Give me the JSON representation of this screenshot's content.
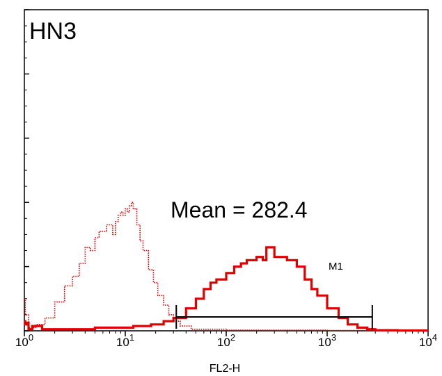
{
  "chart_data": {
    "type": "line",
    "title": "HN3",
    "annotation": "Mean = 282.4",
    "marker": {
      "label": "M1",
      "x_start": 32,
      "x_end": 2800
    },
    "xlabel": "FL2-H",
    "xscale": "log",
    "xlim": [
      1,
      10000
    ],
    "ylim": [
      0,
      100
    ],
    "x_ticks": [
      {
        "value": 1,
        "base": "10",
        "exp": "0"
      },
      {
        "value": 10,
        "base": "10",
        "exp": "1"
      },
      {
        "value": 100,
        "base": "10",
        "exp": "2"
      },
      {
        "value": 1000,
        "base": "10",
        "exp": "3"
      },
      {
        "value": 10000,
        "base": "10",
        "exp": "4"
      }
    ],
    "y_ticks": [
      0,
      20,
      40,
      60,
      80,
      100
    ],
    "grid": false,
    "series": [
      {
        "style": "dotted",
        "color": "#e00000",
        "x": [
          1,
          1.02,
          1.1,
          1.3,
          1.6,
          2,
          2.5,
          3,
          3.5,
          4,
          4.5,
          5,
          5.5,
          6,
          6.5,
          7,
          7.5,
          8,
          8.5,
          9,
          9.5,
          10,
          10.5,
          11,
          11.5,
          12,
          13,
          14,
          15,
          17,
          19,
          21,
          24,
          27,
          30,
          35,
          45,
          100,
          1000,
          10000
        ],
        "y": [
          10,
          5,
          1,
          2,
          4,
          9,
          14,
          17,
          21,
          26,
          25,
          29,
          31,
          31,
          33,
          33,
          30,
          34,
          36,
          37,
          36,
          38,
          37,
          39,
          40,
          38,
          33,
          28,
          25,
          19,
          15,
          11,
          8,
          5,
          3,
          1.5,
          0.5,
          0.2,
          0.1,
          0
        ]
      },
      {
        "style": "solid",
        "color": "#e00000",
        "x": [
          1,
          1.02,
          1.05,
          1.1,
          1.2,
          1.5,
          2,
          3,
          5,
          8,
          12,
          18,
          24,
          30,
          34,
          40,
          50,
          60,
          70,
          80,
          100,
          120,
          140,
          160,
          200,
          230,
          250,
          300,
          350,
          400,
          500,
          600,
          700,
          800,
          1000,
          1300,
          1600,
          2000,
          2500,
          3000,
          5000,
          10000
        ],
        "y": [
          3,
          2,
          2.5,
          0.5,
          1.5,
          0.5,
          0.5,
          0.5,
          1,
          1,
          1.5,
          2,
          3,
          4,
          4,
          7,
          10,
          13,
          15,
          16,
          18,
          20,
          21,
          22,
          23,
          22,
          26,
          23,
          23,
          22,
          20,
          16,
          13,
          11,
          7,
          4,
          2,
          1,
          0.5,
          0.2,
          0.1,
          0.1
        ]
      }
    ]
  }
}
